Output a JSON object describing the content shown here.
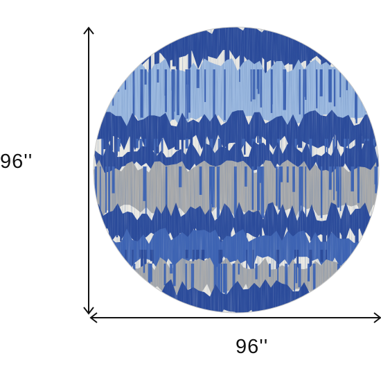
{
  "product": {
    "shape": "round rug",
    "colors": {
      "navy": "#2a4a9a",
      "blue": "#3d63b3",
      "light_blue": "#9ab8df",
      "ivory": "#eceae3",
      "gray": "#a9aaab",
      "arrow": "#111111"
    }
  },
  "dimensions": {
    "height_label": "96''",
    "width_label": "96''"
  }
}
